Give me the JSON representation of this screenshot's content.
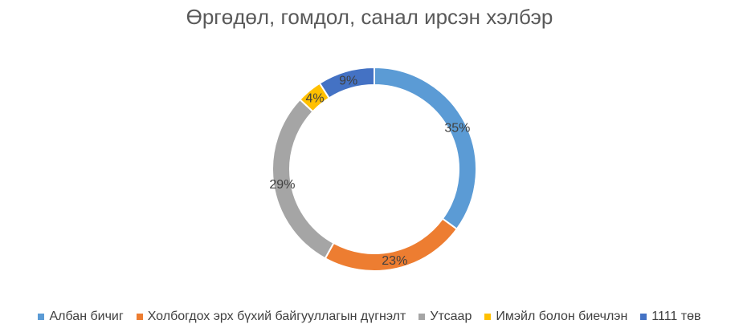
{
  "chart_data": {
    "type": "pie",
    "variant": "donut",
    "title": "Өргөдөл, гомдол, санал ирсэн хэлбэр",
    "legend_position": "bottom",
    "slices": [
      {
        "label": "Албан бичиг",
        "value": 35,
        "value_label": "35%",
        "color": "#5B9BD5"
      },
      {
        "label": "Холбогдох эрх бүхий байгууллагын дүгнэлт",
        "value": 23,
        "value_label": "23%",
        "color": "#ED7D31"
      },
      {
        "label": "Утсаар",
        "value": 29,
        "value_label": "29%",
        "color": "#A5A5A5"
      },
      {
        "label": "Имэйл болон биечлэн",
        "value": 4,
        "value_label": "4%",
        "color": "#FFC000"
      },
      {
        "label": "1111 төв",
        "value": 9,
        "value_label": "9%",
        "color": "#4472C4"
      }
    ]
  }
}
